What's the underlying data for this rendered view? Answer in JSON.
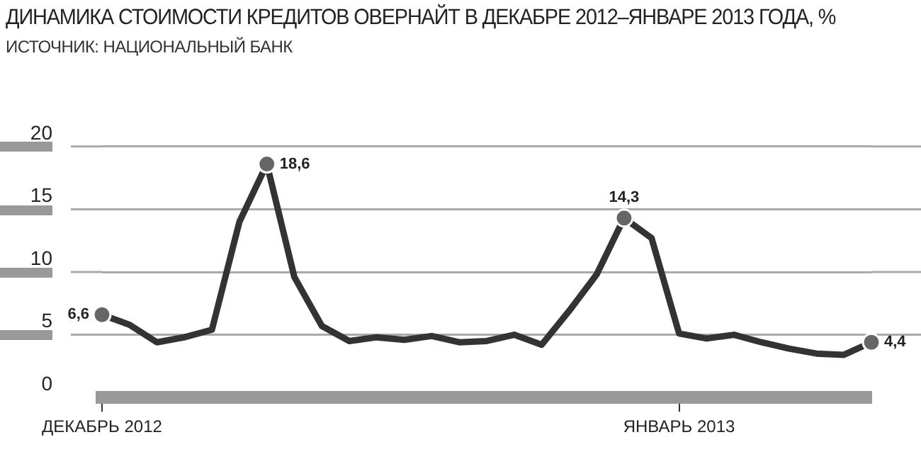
{
  "chart_data": {
    "type": "line",
    "title": "ДИНАМИКА СТОИМОСТИ КРЕДИТОВ ОВЕРНАЙТ В ДЕКАБРЕ 2012–ЯНВАРЕ 2013 ГОДА, %",
    "subtitle": "ИСТОЧНИК: НАЦИОНАЛЬНЫЙ БАНК",
    "categories": [
      "ДЕКАБРЬ 2012",
      null,
      null,
      null,
      null,
      null,
      null,
      null,
      null,
      null,
      null,
      null,
      null,
      null,
      null,
      null,
      null,
      null,
      null,
      null,
      null,
      "ЯНВАРЬ 2013",
      null,
      null,
      null,
      null,
      null,
      null,
      null
    ],
    "series": [
      {
        "color": "#333333",
        "values": [
          6.6,
          5.8,
          4.4,
          4.8,
          5.4,
          14.0,
          18.6,
          9.6,
          5.7,
          4.5,
          4.8,
          4.6,
          4.9,
          4.4,
          4.5,
          5.0,
          4.2,
          6.9,
          9.8,
          14.3,
          12.7,
          5.1,
          4.7,
          5.0,
          4.4,
          3.9,
          3.5,
          3.4,
          4.4
        ],
        "value_labels": [
          "6,6",
          null,
          null,
          null,
          null,
          null,
          "18,6",
          null,
          null,
          null,
          null,
          null,
          null,
          null,
          null,
          null,
          null,
          null,
          null,
          "14,3",
          null,
          null,
          null,
          null,
          null,
          null,
          null,
          null,
          "4,4"
        ]
      }
    ],
    "ylim": [
      0,
      20
    ],
    "yticks": [
      0,
      5,
      10,
      15,
      20
    ],
    "grid": "y",
    "legend": false,
    "line_style": "solid"
  }
}
